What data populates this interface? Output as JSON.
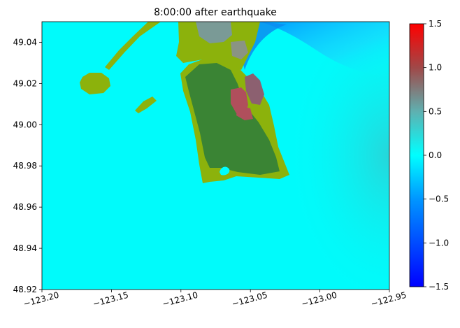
{
  "chart_data": {
    "type": "heatmap",
    "title": "8:00:00 after earthquake",
    "xlabel": "",
    "ylabel": "",
    "xlim": [
      -123.2,
      -122.95
    ],
    "ylim": [
      48.92,
      49.05
    ],
    "x_ticks": [
      -123.2,
      -123.15,
      -123.1,
      -123.05,
      -123.0,
      -122.95
    ],
    "x_tick_labels": [
      "−123.20",
      "−123.15",
      "−123.10",
      "−123.05",
      "−123.00",
      "−122.95"
    ],
    "y_ticks": [
      48.92,
      48.94,
      48.96,
      48.98,
      49.0,
      49.02,
      49.04
    ],
    "y_tick_labels": [
      "48.92",
      "48.94",
      "48.96",
      "48.98",
      "49.00",
      "49.02",
      "49.04"
    ],
    "grid": false,
    "colorbar": {
      "range": [
        -1.5,
        1.5
      ],
      "ticks": [
        -1.5,
        -1.0,
        -0.5,
        0.0,
        0.5,
        1.0,
        1.5
      ],
      "tick_labels": [
        "−1.5",
        "−1.0",
        "−0.5",
        "0.0",
        "0.5",
        "1.0",
        "1.5"
      ],
      "colormap": [
        {
          "value": -1.5,
          "color": "#0000ff"
        },
        {
          "value": -0.5,
          "color": "#0096ff"
        },
        {
          "value": 0.0,
          "color": "#00ffff"
        },
        {
          "value": 0.5,
          "color": "#5fb0b0"
        },
        {
          "value": 1.0,
          "color": "#a04848"
        },
        {
          "value": 1.5,
          "color": "#ff0000"
        }
      ]
    },
    "background_color": "#00fbfb",
    "land_colors": {
      "lowland": "#8cb20c",
      "upland": "#3a8434",
      "inundated": "#b04f5c"
    }
  }
}
